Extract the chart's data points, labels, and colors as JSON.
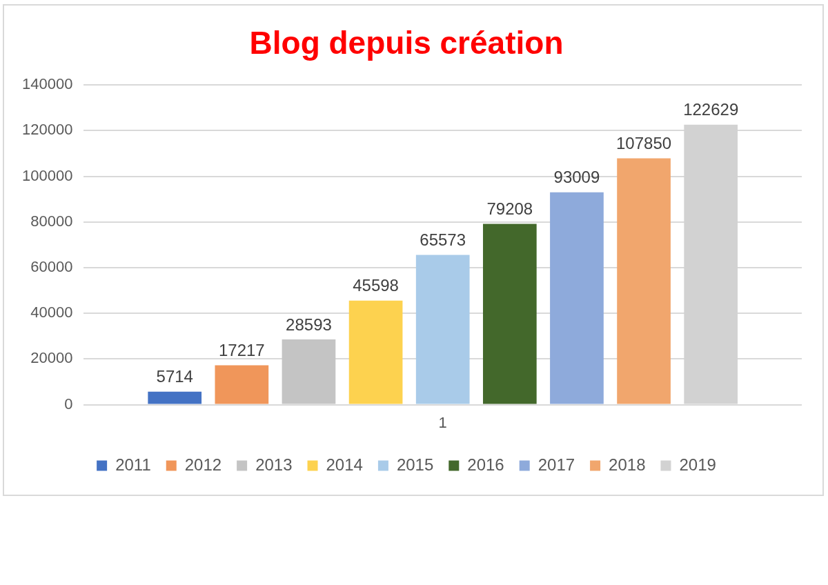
{
  "chart_data": {
    "type": "bar",
    "title": "Blog depuis création",
    "categories": [
      "1"
    ],
    "series": [
      {
        "name": "2011",
        "color": "#4472c4",
        "values": [
          5714
        ]
      },
      {
        "name": "2012",
        "color": "#f0965a",
        "values": [
          17217
        ]
      },
      {
        "name": "2013",
        "color": "#c4c4c4",
        "values": [
          28593
        ]
      },
      {
        "name": "2014",
        "color": "#fdd24f",
        "values": [
          45598
        ]
      },
      {
        "name": "2015",
        "color": "#a9cbe9",
        "values": [
          65573
        ]
      },
      {
        "name": "2016",
        "color": "#43682b",
        "values": [
          79208
        ]
      },
      {
        "name": "2017",
        "color": "#8eaadb",
        "values": [
          93009
        ]
      },
      {
        "name": "2018",
        "color": "#f1a66d",
        "values": [
          107850
        ]
      },
      {
        "name": "2019",
        "color": "#d2d2d2",
        "values": [
          122629
        ]
      }
    ],
    "ylim": [
      0,
      140000
    ],
    "yticks": [
      0,
      20000,
      40000,
      60000,
      80000,
      100000,
      120000,
      140000
    ],
    "grid": "y",
    "legend": "bottom",
    "data_labels": true
  }
}
